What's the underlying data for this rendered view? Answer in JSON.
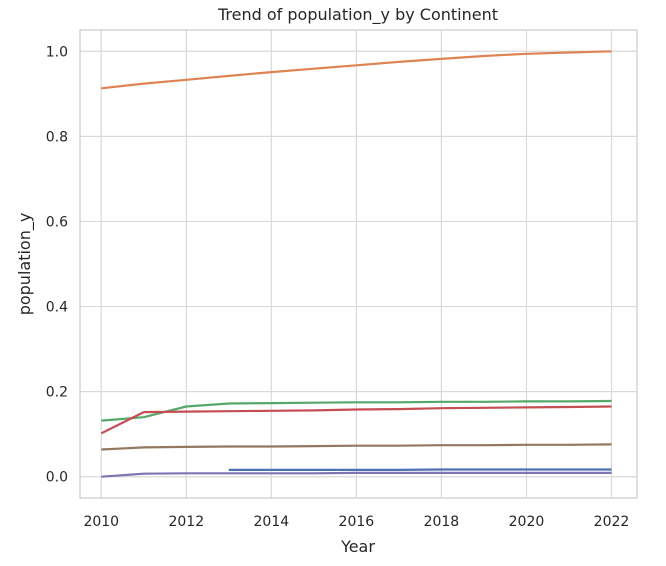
{
  "chart_data": {
    "type": "line",
    "title": "Trend of population_y by Continent",
    "xlabel": "Year",
    "ylabel": "population_y",
    "xlim": [
      2009.5,
      2022.6
    ],
    "ylim": [
      -0.05,
      1.05
    ],
    "xticks": [
      2010,
      2012,
      2014,
      2016,
      2018,
      2020,
      2022
    ],
    "yticks": [
      0.0,
      0.2,
      0.4,
      0.6,
      0.8,
      1.0
    ],
    "ytick_labels": [
      "0.0",
      "0.2",
      "0.4",
      "0.6",
      "0.8",
      "1.0"
    ],
    "grid": true,
    "legend": false,
    "series": [
      {
        "color": "#4c72b0",
        "x": [
          2013,
          2014,
          2015,
          2016,
          2017,
          2018,
          2019,
          2020,
          2021,
          2022
        ],
        "y": [
          0.016,
          0.016,
          0.016,
          0.016,
          0.016,
          0.017,
          0.017,
          0.017,
          0.017,
          0.017
        ]
      },
      {
        "color": "#dd8452",
        "x": [
          2010,
          2011,
          2012,
          2013,
          2014,
          2015,
          2016,
          2017,
          2018,
          2019,
          2020,
          2021,
          2022
        ],
        "y": [
          0.913,
          0.924,
          0.933,
          0.942,
          0.951,
          0.959,
          0.967,
          0.975,
          0.982,
          0.989,
          0.994,
          0.997,
          1.0
        ]
      },
      {
        "color": "#55a868",
        "x": [
          2010,
          2011,
          2012,
          2013,
          2014,
          2015,
          2016,
          2017,
          2018,
          2019,
          2020,
          2021,
          2022
        ],
        "y": [
          0.132,
          0.14,
          0.165,
          0.172,
          0.173,
          0.174,
          0.175,
          0.175,
          0.176,
          0.176,
          0.177,
          0.177,
          0.178
        ]
      },
      {
        "color": "#c44e52",
        "x": [
          2010,
          2011,
          2012,
          2013,
          2014,
          2015,
          2016,
          2017,
          2018,
          2019,
          2020,
          2021,
          2022
        ],
        "y": [
          0.102,
          0.152,
          0.153,
          0.154,
          0.155,
          0.156,
          0.158,
          0.159,
          0.161,
          0.162,
          0.163,
          0.164,
          0.165
        ]
      },
      {
        "color": "#8172b3",
        "x": [
          2010,
          2011,
          2012,
          2013,
          2014,
          2015,
          2016,
          2017,
          2018,
          2019,
          2020,
          2021,
          2022
        ],
        "y": [
          0.0,
          0.007,
          0.008,
          0.008,
          0.008,
          0.008,
          0.009,
          0.009,
          0.009,
          0.009,
          0.009,
          0.009,
          0.009
        ]
      },
      {
        "color": "#937860",
        "x": [
          2010,
          2011,
          2012,
          2013,
          2014,
          2015,
          2016,
          2017,
          2018,
          2019,
          2020,
          2021,
          2022
        ],
        "y": [
          0.064,
          0.069,
          0.07,
          0.071,
          0.071,
          0.072,
          0.073,
          0.073,
          0.074,
          0.074,
          0.075,
          0.075,
          0.076
        ]
      }
    ]
  }
}
